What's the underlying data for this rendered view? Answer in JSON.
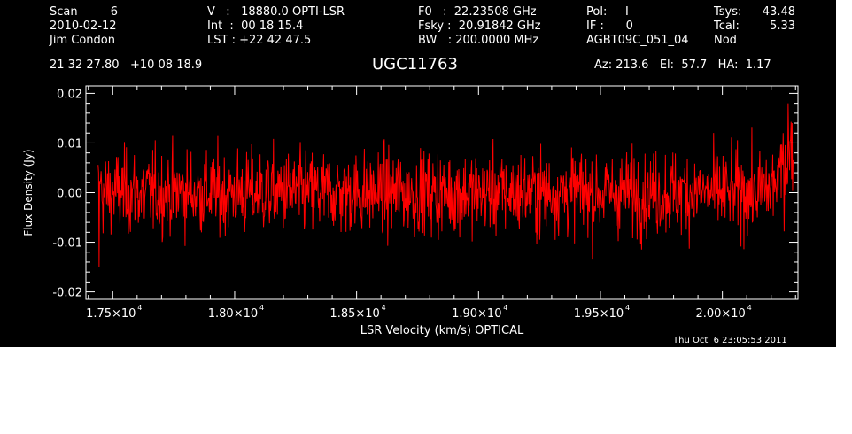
{
  "header": {
    "col1": [
      "Scan         6",
      "2010-02-12",
      "Jim Condon"
    ],
    "col2": [
      "V   :   18880.0 OPTI-LSR",
      "Int  :  00 18 15.4",
      "LST : +22 42 47.5"
    ],
    "col3": [
      "F0   :  22.23508 GHz",
      "Fsky :  20.91842 GHz",
      "BW   : 200.0000 MHz"
    ],
    "col4": [
      "Pol:     I",
      "IF :      0",
      "AGBT09C_051_04"
    ],
    "col5a": [
      "Tsys:",
      "Tcal:",
      "Nod"
    ],
    "col5b": [
      "43.48",
      "5.33",
      ""
    ],
    "coords": "21 32 27.80   +10 08 18.9",
    "source": "UGC11763",
    "azel": "Az: 213.6   El:  57.7   HA:  1.17",
    "timestamp": "Thu Oct  6 23:05:53 2011"
  },
  "chart_data": {
    "type": "line",
    "title": "UGC11763",
    "xlabel": "LSR Velocity (km/s) OPTICAL",
    "ylabel": "Flux Density (Jy)",
    "xlim": [
      17390,
      20310
    ],
    "ylim": [
      -0.0215,
      0.0215
    ],
    "x_ticks": [
      {
        "value": 17500,
        "label": "1.75×10",
        "exp": "4"
      },
      {
        "value": 18000,
        "label": "1.80×10",
        "exp": "4"
      },
      {
        "value": 18500,
        "label": "1.85×10",
        "exp": "4"
      },
      {
        "value": 19000,
        "label": "1.90×10",
        "exp": "4"
      },
      {
        "value": 19500,
        "label": "1.95×10",
        "exp": "4"
      },
      {
        "value": 20000,
        "label": "2.00×10",
        "exp": "4"
      }
    ],
    "y_ticks": [
      {
        "value": 0.02,
        "label": "0.02"
      },
      {
        "value": 0.01,
        "label": "0.01"
      },
      {
        "value": 0.0,
        "label": "0.00"
      },
      {
        "value": -0.01,
        "label": "-0.01"
      },
      {
        "value": -0.02,
        "label": "-0.02"
      }
    ],
    "series": [
      {
        "color": "#ff0000",
        "x_start": 17440,
        "x_end": 20290,
        "noise_rms": 0.0042,
        "points": 1400,
        "edge_features": [
          {
            "x": 17445,
            "y": -0.015
          },
          {
            "x": 17450,
            "y": 0.0025
          },
          {
            "x": 20250,
            "y": 0.012
          },
          {
            "x": 20270,
            "y": 0.018
          },
          {
            "x": 20285,
            "y": 0.014
          }
        ]
      }
    ],
    "grid": false,
    "background": "#000000",
    "axis_color": "#ffffff"
  }
}
